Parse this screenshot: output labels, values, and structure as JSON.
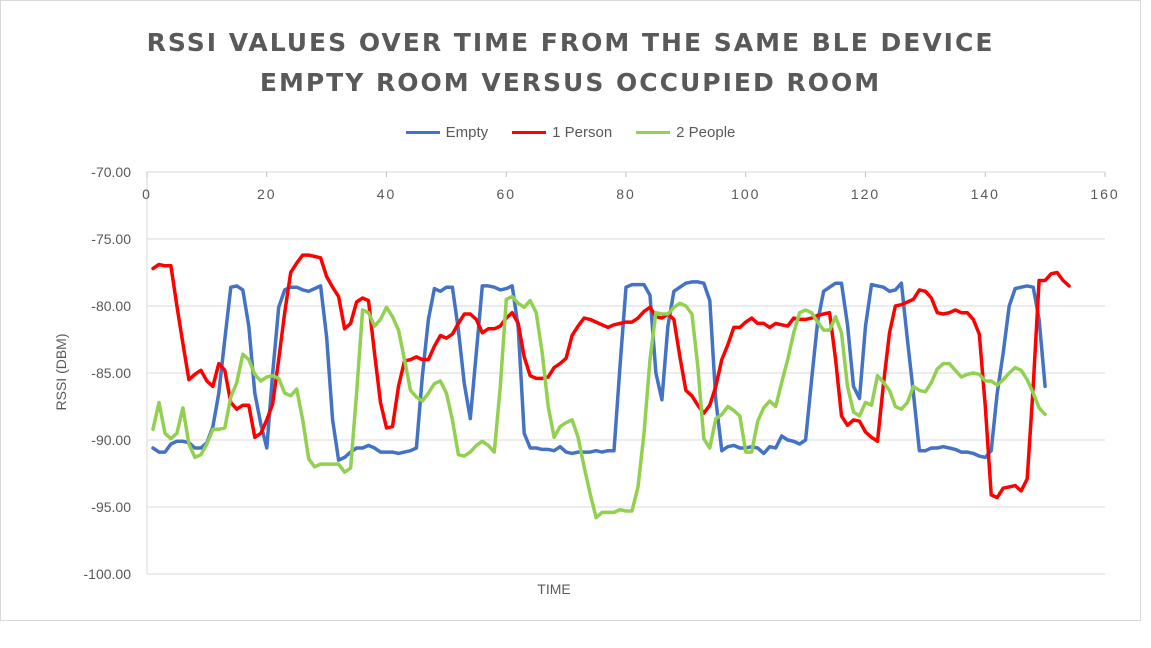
{
  "chart_data": {
    "type": "line",
    "title_line1": "RSSI VALUES OVER TIME FROM THE SAME BLE DEVICE",
    "title_line2": "EMPTY ROOM VERSUS OCCUPIED ROOM",
    "xlabel": "TIME",
    "ylabel": "RSSI (DBM)",
    "xlim": [
      0,
      160
    ],
    "ylim": [
      -100,
      -70
    ],
    "x_ticks": [
      0,
      20,
      40,
      60,
      80,
      100,
      120,
      140,
      160
    ],
    "y_ticks": [
      "-70.00",
      "-75.00",
      "-80.00",
      "-85.00",
      "-90.00",
      "-95.00",
      "-100.00"
    ],
    "y_tick_values": [
      -70,
      -75,
      -80,
      -85,
      -90,
      -95,
      -100
    ],
    "legend_position": "top-center",
    "series": [
      {
        "name": "Empty",
        "color": "#4472C4",
        "values": [
          -90.6,
          -90.9,
          -90.9,
          -90.3,
          -90.1,
          -90.1,
          -90.2,
          -90.6,
          -90.6,
          -90.2,
          -89.0,
          -86.5,
          -82.5,
          -78.6,
          -78.5,
          -78.8,
          -81.5,
          -86.5,
          -88.8,
          -90.6,
          -85.0,
          -80.1,
          -78.8,
          -78.6,
          -78.6,
          -78.8,
          -78.9,
          -78.7,
          -78.5,
          -82.3,
          -88.5,
          -91.5,
          -91.3,
          -90.9,
          -90.6,
          -90.6,
          -90.4,
          -90.6,
          -90.9,
          -90.9,
          -90.9,
          -91.0,
          -90.9,
          -90.8,
          -90.6,
          -85.2,
          -81.0,
          -78.7,
          -78.9,
          -78.6,
          -78.6,
          -81.8,
          -85.8,
          -88.4,
          -83.5,
          -78.5,
          -78.5,
          -78.6,
          -78.8,
          -78.7,
          -78.5,
          -81.6,
          -89.5,
          -90.6,
          -90.6,
          -90.7,
          -90.7,
          -90.8,
          -90.5,
          -90.9,
          -91.0,
          -90.9,
          -90.9,
          -90.9,
          -90.8,
          -90.9,
          -90.8,
          -90.8,
          -84.5,
          -78.6,
          -78.4,
          -78.4,
          -78.4,
          -79.2,
          -85.0,
          -87.0,
          -81.5,
          -78.9,
          -78.6,
          -78.3,
          -78.2,
          -78.2,
          -78.3,
          -79.6,
          -87.0,
          -90.8,
          -90.5,
          -90.4,
          -90.6,
          -90.6,
          -90.5,
          -90.6,
          -91.0,
          -90.5,
          -90.6,
          -89.7,
          -90.0,
          -90.1,
          -90.3,
          -90.0,
          -85.5,
          -81.2,
          -78.9,
          -78.6,
          -78.3,
          -78.3,
          -81.4,
          -86.0,
          -86.9,
          -81.5,
          -78.4,
          -78.5,
          -78.6,
          -78.9,
          -78.8,
          -78.3,
          -82.5,
          -86.5,
          -90.8,
          -90.8,
          -90.6,
          -90.6,
          -90.5,
          -90.6,
          -90.7,
          -90.9,
          -90.9,
          -91.0,
          -91.2,
          -91.3,
          -90.8,
          -86.5,
          -83.5,
          -80.0,
          -78.7,
          -78.6,
          -78.5,
          -78.6,
          -81.0,
          -86.0
        ]
      },
      {
        "name": "1 Person",
        "color": "#FF0000",
        "values": [
          -77.2,
          -76.9,
          -77.0,
          -77.0,
          -80.0,
          -82.8,
          -85.5,
          -85.1,
          -84.8,
          -85.6,
          -86.0,
          -84.3,
          -84.8,
          -87.2,
          -87.7,
          -87.4,
          -87.4,
          -89.8,
          -89.5,
          -88.5,
          -87.3,
          -84.0,
          -80.5,
          -77.5,
          -76.8,
          -76.2,
          -76.2,
          -76.3,
          -76.4,
          -77.8,
          -78.6,
          -79.3,
          -81.7,
          -81.3,
          -79.7,
          -79.4,
          -79.6,
          -83.5,
          -87.2,
          -89.1,
          -89.0,
          -86.0,
          -84.1,
          -84.0,
          -83.8,
          -84.0,
          -84.0,
          -83.0,
          -82.2,
          -82.4,
          -82.1,
          -81.3,
          -80.6,
          -80.6,
          -81.0,
          -82.0,
          -81.7,
          -81.7,
          -81.5,
          -80.9,
          -80.5,
          -81.3,
          -83.8,
          -85.2,
          -85.4,
          -85.4,
          -85.3,
          -84.6,
          -84.3,
          -83.9,
          -82.2,
          -81.5,
          -80.9,
          -81.0,
          -81.2,
          -81.4,
          -81.6,
          -81.4,
          -81.3,
          -81.2,
          -81.2,
          -80.9,
          -80.4,
          -80.1,
          -80.8,
          -80.9,
          -80.6,
          -81.0,
          -83.8,
          -86.3,
          -86.7,
          -87.4,
          -88.0,
          -87.4,
          -86.0,
          -84.0,
          -82.9,
          -81.6,
          -81.6,
          -81.2,
          -80.9,
          -81.3,
          -81.3,
          -81.6,
          -81.3,
          -81.4,
          -81.5,
          -80.9,
          -81.0,
          -81.0,
          -80.9,
          -80.7,
          -80.6,
          -80.5,
          -84.0,
          -88.2,
          -88.9,
          -88.5,
          -88.6,
          -89.4,
          -89.8,
          -90.1,
          -85.8,
          -82.0,
          -80.0,
          -79.9,
          -79.7,
          -79.5,
          -78.8,
          -78.9,
          -79.4,
          -80.5,
          -80.6,
          -80.5,
          -80.3,
          -80.5,
          -80.5,
          -81.0,
          -82.1,
          -87.5,
          -94.1,
          -94.3,
          -93.6,
          -93.5,
          -93.4,
          -93.8,
          -92.9,
          -86.0,
          -78.1,
          -78.1,
          -77.6,
          -77.5,
          -78.1,
          -78.5
        ]
      },
      {
        "name": "2 People",
        "color": "#92D050",
        "values": [
          -89.2,
          -87.2,
          -89.5,
          -89.9,
          -89.5,
          -87.6,
          -90.3,
          -91.3,
          -91.1,
          -90.3,
          -89.2,
          -89.2,
          -89.1,
          -86.8,
          -85.7,
          -83.6,
          -84.0,
          -85.1,
          -85.6,
          -85.3,
          -85.2,
          -85.4,
          -86.5,
          -86.7,
          -86.2,
          -88.5,
          -91.4,
          -92.0,
          -91.8,
          -91.8,
          -91.8,
          -91.8,
          -92.4,
          -92.1,
          -86.5,
          -80.3,
          -80.5,
          -81.5,
          -81.0,
          -80.1,
          -80.8,
          -81.8,
          -84.0,
          -86.3,
          -86.8,
          -87.1,
          -86.5,
          -85.8,
          -85.6,
          -86.5,
          -88.5,
          -91.1,
          -91.2,
          -90.9,
          -90.4,
          -90.1,
          -90.4,
          -90.9,
          -86.0,
          -79.5,
          -79.3,
          -79.8,
          -80.1,
          -79.6,
          -80.5,
          -83.5,
          -87.5,
          -89.8,
          -89.0,
          -88.7,
          -88.5,
          -89.8,
          -92.0,
          -94.0,
          -95.8,
          -95.4,
          -95.4,
          -95.4,
          -95.2,
          -95.3,
          -95.3,
          -93.5,
          -89.5,
          -84.0,
          -80.5,
          -80.6,
          -80.6,
          -80.1,
          -79.8,
          -80.0,
          -80.6,
          -84.5,
          -89.9,
          -90.6,
          -88.4,
          -88.1,
          -87.5,
          -87.8,
          -88.2,
          -90.9,
          -90.9,
          -88.6,
          -87.6,
          -87.1,
          -87.5,
          -85.7,
          -84.0,
          -82.0,
          -80.5,
          -80.3,
          -80.5,
          -81.2,
          -81.8,
          -81.8,
          -80.8,
          -82.0,
          -86.0,
          -87.9,
          -88.2,
          -87.2,
          -87.4,
          -85.2,
          -85.7,
          -86.3,
          -87.5,
          -87.7,
          -87.2,
          -86.0,
          -86.3,
          -86.4,
          -85.7,
          -84.7,
          -84.3,
          -84.3,
          -84.8,
          -85.3,
          -85.1,
          -85.0,
          -85.1,
          -85.6,
          -85.6,
          -85.9,
          -85.5,
          -85.0,
          -84.6,
          -84.8,
          -85.5,
          -86.5,
          -87.6,
          -88.1
        ]
      }
    ]
  }
}
